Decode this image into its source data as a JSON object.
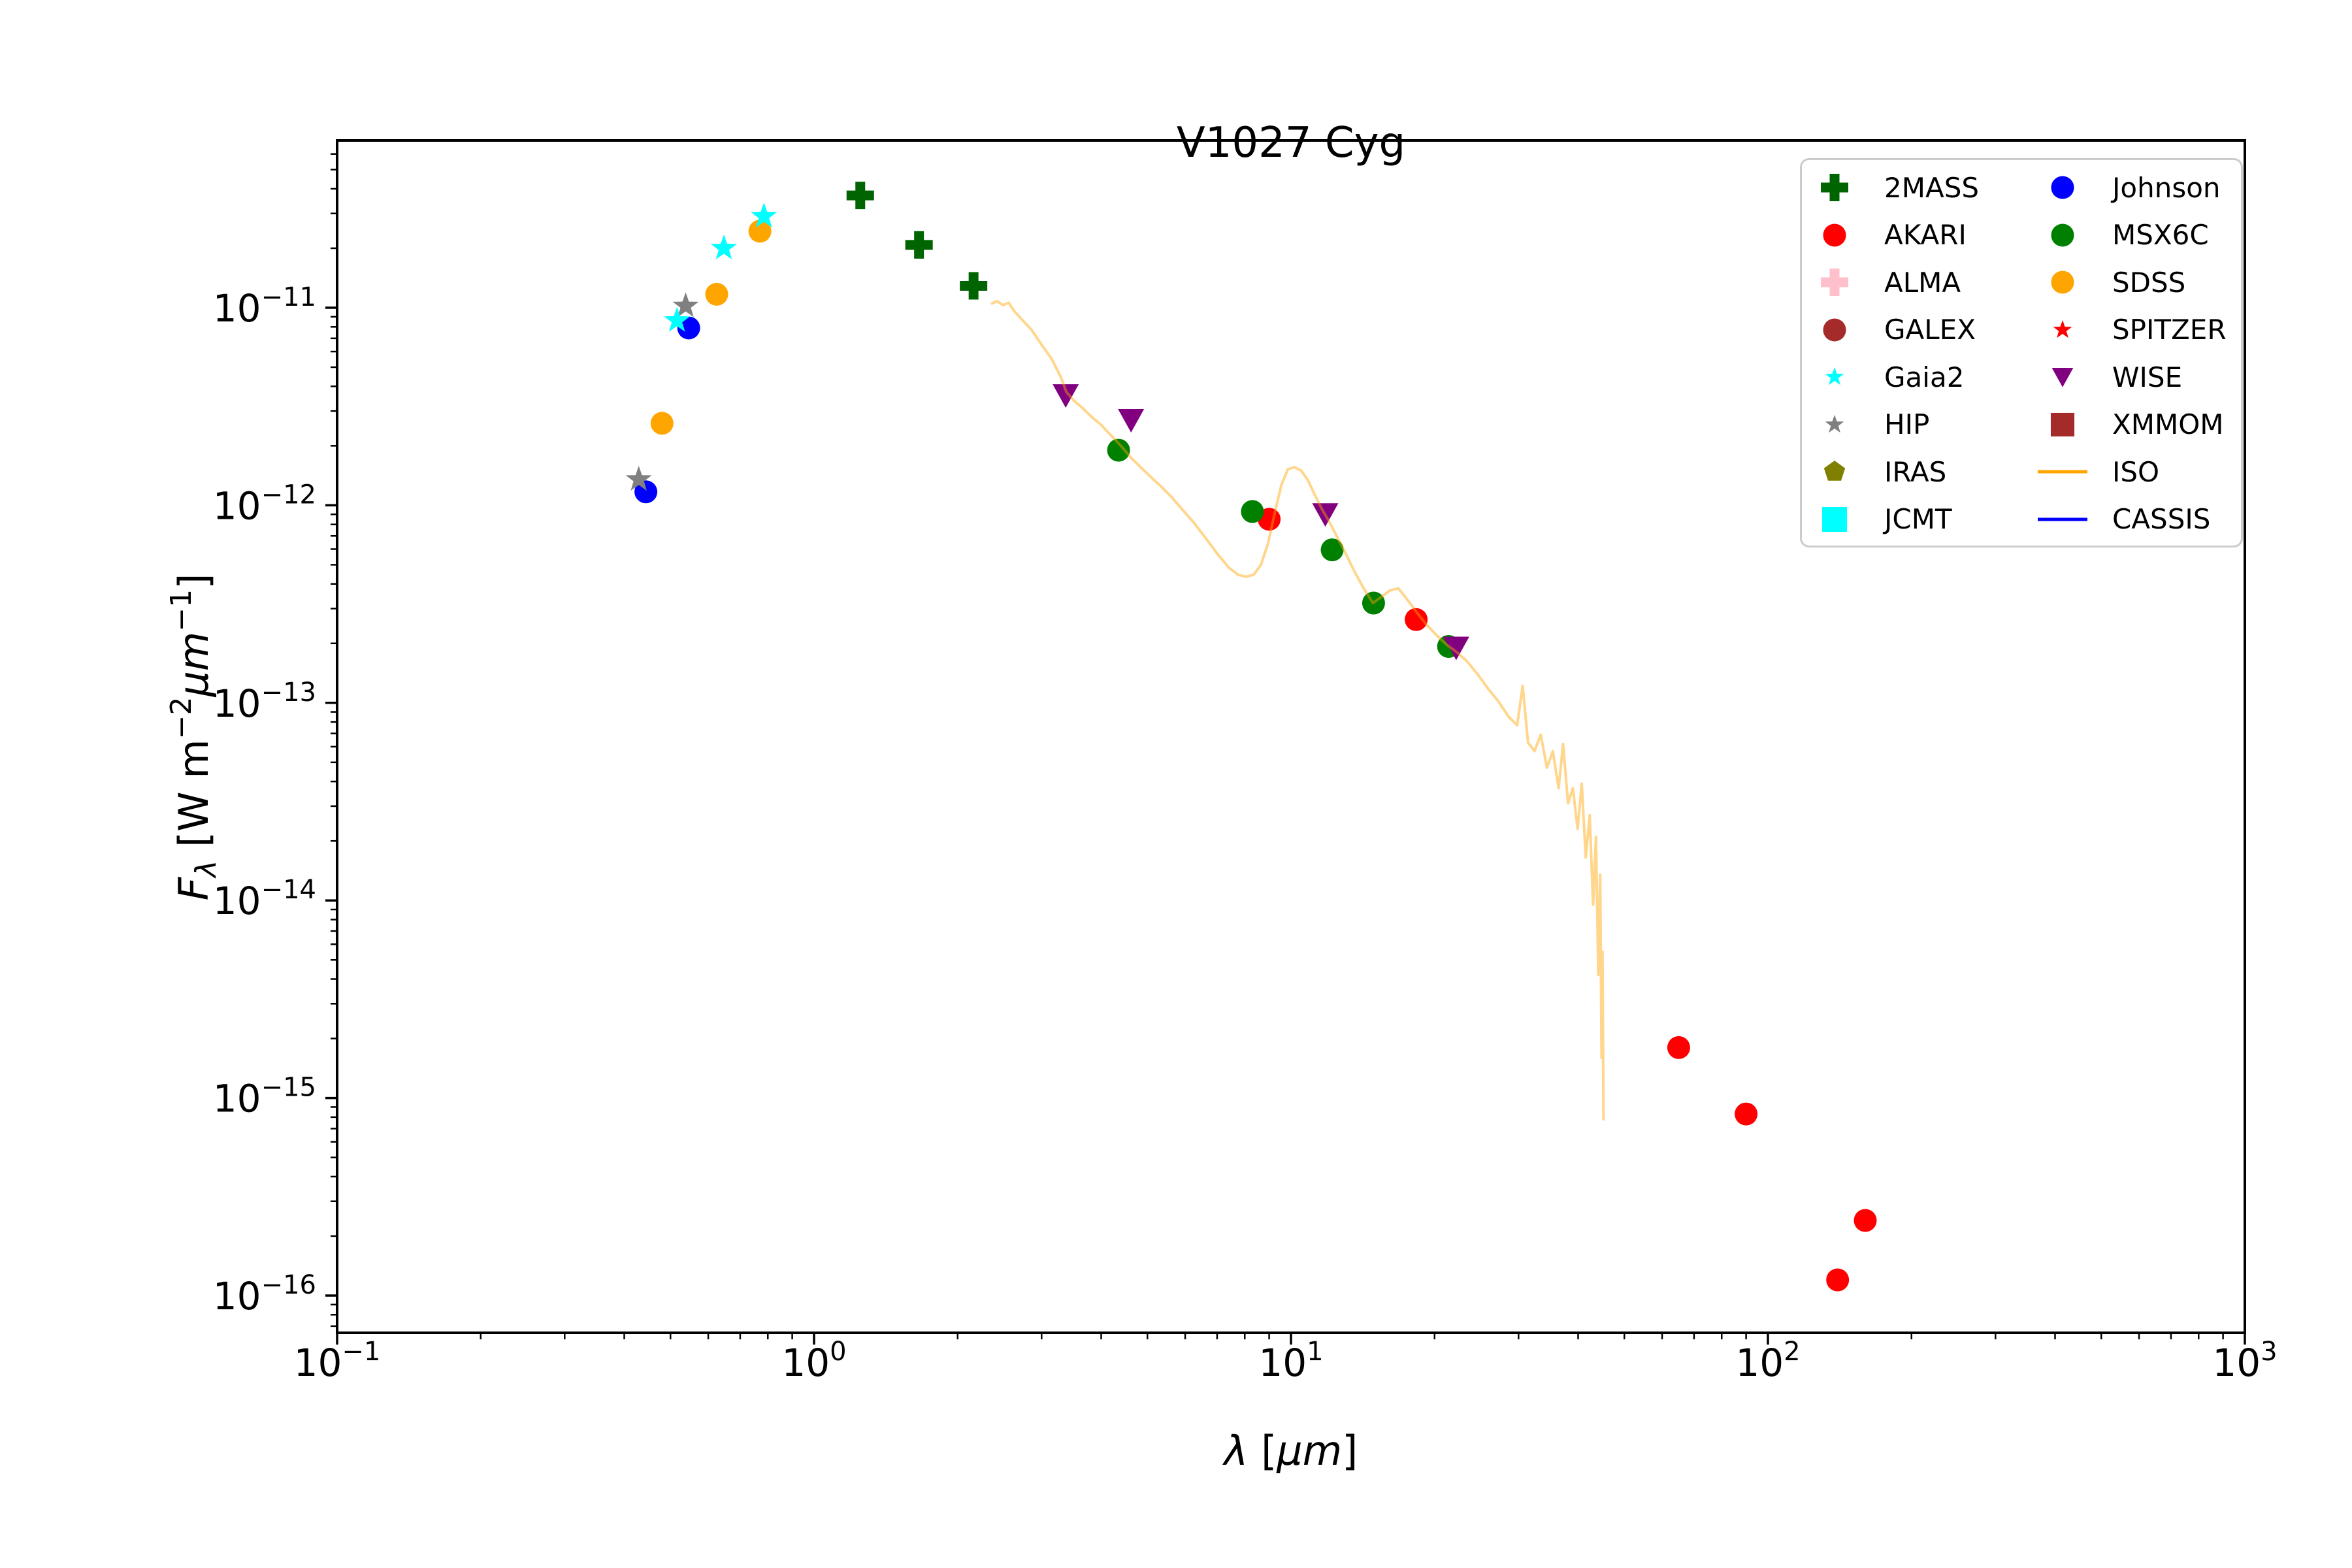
{
  "title": "V1027 Cyg",
  "axes": {
    "xlabel": {
      "lambda": "λ",
      "open": " [",
      "mu": "µm",
      "close": "]"
    },
    "ylabel": {
      "F": "F",
      "sub": "λ",
      "mid": " [W m",
      "sup1": "−2",
      "mu": "µm",
      "sup2": "−1",
      "end": "]"
    },
    "tick_base": "10",
    "x_tick_exponents": [
      -1,
      0,
      1,
      2,
      3
    ],
    "y_tick_exponents": [
      -11,
      -12,
      -13,
      -14,
      -15,
      -16
    ]
  },
  "legend": {
    "col1": [
      {
        "label": "2MASS",
        "marker": "plus",
        "color": "#006400",
        "size": 1.0
      },
      {
        "label": "AKARI",
        "marker": "circle",
        "color": "#ff0000",
        "size": 1.0
      },
      {
        "label": "ALMA",
        "marker": "plus",
        "color": "#ffc0cb",
        "size": 1.0
      },
      {
        "label": "GALEX",
        "marker": "circle",
        "color": "#a52a2a",
        "size": 1.0
      },
      {
        "label": "Gaia2",
        "marker": "star",
        "color": "#00ffff",
        "size": 0.72
      },
      {
        "label": "HIP",
        "marker": "star",
        "color": "#808080",
        "size": 0.72
      },
      {
        "label": "IRAS",
        "marker": "pentagon",
        "color": "#808000",
        "size": 0.85
      },
      {
        "label": "JCMT",
        "marker": "square",
        "color": "#00ffff",
        "size": 1.0
      }
    ],
    "col2": [
      {
        "label": "Johnson",
        "marker": "circle",
        "color": "#0000ff",
        "size": 1.0
      },
      {
        "label": "MSX6C",
        "marker": "circle",
        "color": "#008000",
        "size": 1.0
      },
      {
        "label": "SDSS",
        "marker": "circle",
        "color": "#ffa500",
        "size": 1.0
      },
      {
        "label": "SPITZER",
        "marker": "star",
        "color": "#ff0000",
        "size": 0.72
      },
      {
        "label": "WISE",
        "marker": "triangle-down",
        "color": "#800080",
        "size": 0.82
      },
      {
        "label": "XMMOM",
        "marker": "square",
        "color": "#a52a2a",
        "size": 0.95
      },
      {
        "label": "ISO",
        "marker": "line",
        "color": "#ffa500",
        "size": 1.0
      },
      {
        "label": "CASSIS",
        "marker": "line",
        "color": "#0000ff",
        "size": 1.0
      }
    ]
  },
  "chart_data": {
    "type": "scatter",
    "title": "V1027 Cyg",
    "xlabel": "λ [µm]",
    "ylabel": "Fλ [W m−2µm−1]",
    "x_scale": "log",
    "y_scale": "log",
    "xlim": [
      0.1,
      1000
    ],
    "ylim": [
      6.5e-17,
      7.1e-11
    ],
    "grid": false,
    "legend_position": "upper right",
    "series": [
      {
        "name": "AKARI",
        "marker": "circle",
        "color": "#ff0000",
        "points": [
          [
            9.0,
            8.5e-13
          ],
          [
            18.3,
            2.64e-13
          ],
          [
            65,
            1.8e-15
          ],
          [
            90,
            8.3e-16
          ],
          [
            140,
            1.2e-16
          ],
          [
            160,
            2.4e-16
          ]
        ]
      },
      {
        "name": "SDSS",
        "marker": "circle",
        "color": "#ffa500",
        "points": [
          [
            0.48,
            2.6e-12
          ],
          [
            0.625,
            1.17e-11
          ],
          [
            0.77,
            2.44e-11
          ]
        ]
      },
      {
        "name": "Johnson",
        "marker": "circle",
        "color": "#0000ff",
        "points": [
          [
            0.444,
            1.17e-12
          ],
          [
            0.546,
            7.9e-12
          ]
        ]
      },
      {
        "name": "HIP",
        "marker": "star",
        "color": "#808080",
        "points": [
          [
            0.429,
            1.35e-12
          ],
          [
            0.538,
            1.02e-11
          ]
        ]
      },
      {
        "name": "Gaia2",
        "marker": "star",
        "color": "#00ffff",
        "points": [
          [
            0.516,
            8.6e-12
          ],
          [
            0.647,
            2e-11
          ],
          [
            0.785,
            2.9e-11
          ]
        ]
      },
      {
        "name": "2MASS",
        "marker": "plus",
        "color": "#006400",
        "points": [
          [
            1.25,
            3.7e-11
          ],
          [
            1.66,
            2.08e-11
          ],
          [
            2.16,
            1.29e-11
          ]
        ]
      },
      {
        "name": "MSX6C",
        "marker": "circle",
        "color": "#008000",
        "points": [
          [
            4.35,
            1.9e-12
          ],
          [
            8.3,
            9.3e-13
          ],
          [
            12.2,
            5.95e-13
          ],
          [
            14.9,
            3.2e-13
          ],
          [
            21.4,
            1.93e-13
          ]
        ]
      },
      {
        "name": "WISE",
        "marker": "triangle-down",
        "color": "#800080",
        "points": [
          [
            3.37,
            3.6e-12
          ],
          [
            4.62,
            2.7e-12
          ],
          [
            11.8,
            9e-13
          ],
          [
            22.2,
            1.9e-13
          ]
        ]
      }
    ],
    "iso_spectrum": {
      "name": "ISO",
      "color": "#ffa500",
      "opacity": 0.45,
      "points": [
        [
          2.36,
          1.05e-11
        ],
        [
          2.42,
          1.08e-11
        ],
        [
          2.49,
          1.03e-11
        ],
        [
          2.56,
          1.06e-11
        ],
        [
          2.63,
          9.6e-12
        ],
        [
          2.73,
          8.7e-12
        ],
        [
          2.86,
          7.7e-12
        ],
        [
          3.0,
          6.5e-12
        ],
        [
          3.15,
          5.5e-12
        ],
        [
          3.3,
          4.4e-12
        ],
        [
          3.38,
          3.75e-12
        ],
        [
          3.5,
          3.4e-12
        ],
        [
          3.66,
          3.1e-12
        ],
        [
          3.82,
          2.8e-12
        ],
        [
          4.0,
          2.55e-12
        ],
        [
          4.2,
          2.25e-12
        ],
        [
          4.4,
          2e-12
        ],
        [
          4.62,
          1.74e-12
        ],
        [
          4.85,
          1.55e-12
        ],
        [
          5.1,
          1.38e-12
        ],
        [
          5.35,
          1.24e-12
        ],
        [
          5.62,
          1.1e-12
        ],
        [
          5.92,
          9.5e-13
        ],
        [
          6.25,
          8.2e-13
        ],
        [
          6.6,
          6.9e-13
        ],
        [
          7.0,
          5.7e-13
        ],
        [
          7.4,
          4.85e-13
        ],
        [
          7.75,
          4.45e-13
        ],
        [
          8.05,
          4.35e-13
        ],
        [
          8.35,
          4.45e-13
        ],
        [
          8.65,
          5e-13
        ],
        [
          8.95,
          6.4e-13
        ],
        [
          9.25,
          9.2e-13
        ],
        [
          9.55,
          1.27e-12
        ],
        [
          9.85,
          1.52e-12
        ],
        [
          10.15,
          1.56e-12
        ],
        [
          10.5,
          1.5e-12
        ],
        [
          10.85,
          1.34e-12
        ],
        [
          11.2,
          1.14e-12
        ],
        [
          11.6,
          9.6e-13
        ],
        [
          12.05,
          8.2e-13
        ],
        [
          12.5,
          6.9e-13
        ],
        [
          13.0,
          5.75e-13
        ],
        [
          13.6,
          4.6e-13
        ],
        [
          14.2,
          3.8e-13
        ],
        [
          14.85,
          3.2e-13
        ],
        [
          15.5,
          3.45e-13
        ],
        [
          16.1,
          3.7e-13
        ],
        [
          16.8,
          3.8e-13
        ],
        [
          17.5,
          3.35e-13
        ],
        [
          18.3,
          2.9e-13
        ],
        [
          19.2,
          2.5e-13
        ],
        [
          20.2,
          2.2e-13
        ],
        [
          21.2,
          1.97e-13
        ],
        [
          22.3,
          1.8e-13
        ],
        [
          23.4,
          1.62e-13
        ],
        [
          24.6,
          1.4e-13
        ],
        [
          25.9,
          1.18e-13
        ],
        [
          27.2,
          1.02e-13
        ],
        [
          28.6,
          8.5e-14
        ],
        [
          29.8,
          7.7e-14
        ],
        [
          30.6,
          1.22e-13
        ],
        [
          31.4,
          6.3e-14
        ],
        [
          32.4,
          5.7e-14
        ],
        [
          33.4,
          6.9e-14
        ],
        [
          34.4,
          4.7e-14
        ],
        [
          35.4,
          5.7e-14
        ],
        [
          36.4,
          3.7e-14
        ],
        [
          37.2,
          6.2e-14
        ],
        [
          38.1,
          3.1e-14
        ],
        [
          39.0,
          3.7e-14
        ],
        [
          39.9,
          2.3e-14
        ],
        [
          40.7,
          3.9e-14
        ],
        [
          41.5,
          1.65e-14
        ],
        [
          42.3,
          2.7e-14
        ],
        [
          43.0,
          9.5e-15
        ],
        [
          43.6,
          2.1e-14
        ],
        [
          44.1,
          4.2e-15
        ],
        [
          44.5,
          1.35e-14
        ],
        [
          44.8,
          1.6e-15
        ],
        [
          45.0,
          5.5e-15
        ],
        [
          45.2,
          7.8e-16
        ]
      ]
    }
  }
}
